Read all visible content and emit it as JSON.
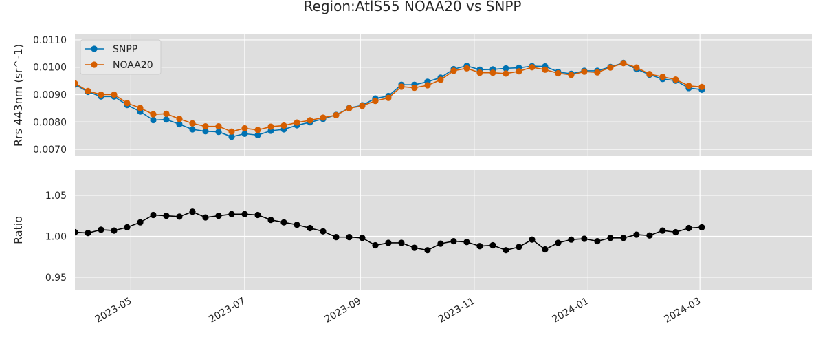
{
  "chart_data": {
    "type": "line",
    "title": "Region:AtlS55 NOAA20 vs SNPP",
    "grid": true,
    "x_start": "2023-04-01",
    "x_step_days": 7,
    "xlim": [
      "2023-04-01",
      "2024-04-30"
    ],
    "xticks": [
      {
        "date": "2023-05-01",
        "label": "2023-05"
      },
      {
        "date": "2023-07-01",
        "label": "2023-07"
      },
      {
        "date": "2023-09-01",
        "label": "2023-09"
      },
      {
        "date": "2023-11-01",
        "label": "2023-11"
      },
      {
        "date": "2024-01-01",
        "label": "2024-01"
      },
      {
        "date": "2024-03-01",
        "label": "2024-03"
      }
    ],
    "panels": [
      {
        "ylabel": "Rrs 443nm (sr^-1)",
        "ylim": [
          0.00675,
          0.0112
        ],
        "yticks": [
          0.007,
          0.008,
          0.009,
          0.01,
          0.011
        ],
        "ytick_labels": [
          "0.0070",
          "0.0080",
          "0.0090",
          "0.0100",
          "0.0110"
        ],
        "legend": "top-left",
        "series": [
          {
            "name": "SNPP",
            "color": "#0072b2",
            "values": [
              0.00937,
              0.0091,
              0.00893,
              0.00893,
              0.00862,
              0.00838,
              0.00807,
              0.00809,
              0.00792,
              0.00773,
              0.00766,
              0.00764,
              0.00746,
              0.00757,
              0.00752,
              0.00768,
              0.00773,
              0.00788,
              0.00799,
              0.00811,
              0.00826,
              0.00851,
              0.00861,
              0.00886,
              0.00895,
              0.00936,
              0.00936,
              0.00947,
              0.00962,
              0.00993,
              0.01005,
              0.00991,
              0.00992,
              0.00996,
              0.00998,
              0.01004,
              0.01003,
              0.00983,
              0.00976,
              0.00987,
              0.00987,
              0.01001,
              0.01016,
              0.00993,
              0.00973,
              0.00957,
              0.00951,
              0.00924,
              0.00918
            ]
          },
          {
            "name": "NOAA20",
            "color": "#d55e00",
            "values": [
              0.00941,
              0.00913,
              0.009,
              0.009,
              0.00869,
              0.00851,
              0.00828,
              0.0083,
              0.00811,
              0.00795,
              0.00784,
              0.00784,
              0.00765,
              0.00777,
              0.00771,
              0.00783,
              0.00787,
              0.00798,
              0.00806,
              0.00816,
              0.00825,
              0.0085,
              0.00859,
              0.00877,
              0.00888,
              0.00929,
              0.00925,
              0.00934,
              0.00954,
              0.00987,
              0.00996,
              0.0098,
              0.0098,
              0.00977,
              0.00985,
              0.01,
              0.00991,
              0.00978,
              0.00972,
              0.00984,
              0.00981,
              0.00999,
              0.01015,
              0.00999,
              0.00975,
              0.00965,
              0.00955,
              0.00932,
              0.00928
            ]
          }
        ]
      },
      {
        "ylabel": "Ratio",
        "ylim": [
          0.934,
          1.081
        ],
        "yticks": [
          0.95,
          1.0,
          1.05
        ],
        "ytick_labels": [
          "0.95",
          "1.00",
          "1.05"
        ],
        "series": [
          {
            "name": "",
            "color": "#000000",
            "values": [
              1.005,
              1.004,
              1.008,
              1.007,
              1.011,
              1.017,
              1.026,
              1.025,
              1.024,
              1.03,
              1.023,
              1.025,
              1.027,
              1.027,
              1.026,
              1.02,
              1.017,
              1.014,
              1.01,
              1.006,
              0.999,
              0.999,
              0.998,
              0.989,
              0.992,
              0.992,
              0.986,
              0.983,
              0.991,
              0.994,
              0.993,
              0.988,
              0.989,
              0.983,
              0.987,
              0.996,
              0.984,
              0.992,
              0.996,
              0.997,
              0.994,
              0.998,
              0.998,
              1.002,
              1.001,
              1.007,
              1.005,
              1.01,
              1.011
            ]
          }
        ]
      }
    ]
  }
}
